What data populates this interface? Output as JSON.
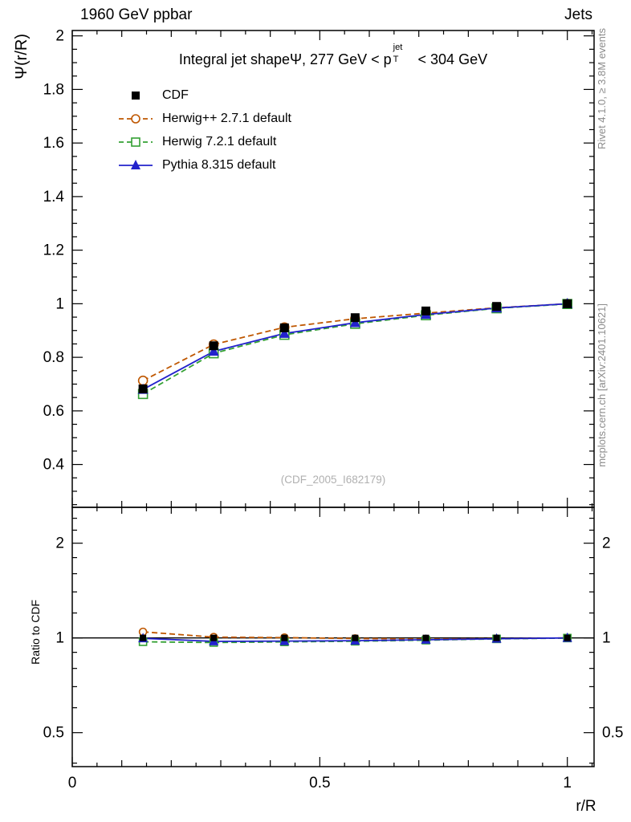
{
  "header": {
    "left": "1960 GeV ppbar",
    "right": "Jets"
  },
  "side_notes": {
    "top": "Rivet 4.1.0, ≥ 3.8M events",
    "bottom": "mcplots.cern.ch [arXiv:2401.10621]"
  },
  "watermark": "(CDF_2005_I682179)",
  "title": {
    "prefix": "Integral jet shape",
    "psi": "Ψ",
    "mid": ", 277 GeV < p",
    "sup": "jet",
    "sub": "T",
    "suffix": " < 304 GeV"
  },
  "axes": {
    "x_label": "r/R",
    "y_label_main": "Ψ(r/R)",
    "y_label_ratio": "Ratio to CDF"
  },
  "chart_data": {
    "type": "line",
    "title": "Integral jet shape Ψ, 277 GeV < p_T^jet < 304 GeV",
    "xlabel": "r/R",
    "ylabel": "Ψ(r/R)",
    "ratio_ylabel": "Ratio to CDF",
    "panels": [
      "main",
      "ratio"
    ],
    "xlim": [
      0,
      1.054
    ],
    "ylim_main": [
      0.24,
      2.02
    ],
    "ylim_ratio": [
      0.39,
      2.6
    ],
    "ratio_scale": "log",
    "x_major_ticks": [
      0,
      0.5,
      1
    ],
    "y_major_ticks_main": [
      0.4,
      0.6,
      0.8,
      1,
      1.2,
      1.4,
      1.6,
      1.8,
      2
    ],
    "y_major_ticks_ratio": [
      0.5,
      1,
      2
    ],
    "y_minor_ticks_ratio": [
      0.4,
      0.6,
      0.7,
      0.8,
      0.9,
      1.2,
      1.4,
      1.6,
      1.8,
      2.2,
      2.4
    ],
    "x": [
      0.1429,
      0.2857,
      0.4286,
      0.5714,
      0.7143,
      0.8571,
      1.0
    ],
    "series": [
      {
        "name": "CDF",
        "color": "#000000",
        "marker": "filled-square",
        "line": "none",
        "values": [
          0.682,
          0.843,
          0.91,
          0.948,
          0.973,
          0.99,
          1.0
        ]
      },
      {
        "name": "Herwig++ 2.7.1 default",
        "color": "#bf5700",
        "marker": "open-circle",
        "line": "dashed",
        "values": [
          0.713,
          0.848,
          0.912,
          0.944,
          0.965,
          0.985,
          1.0
        ]
      },
      {
        "name": "Herwig 7.2.1 default",
        "color": "#33a033",
        "marker": "open-square",
        "line": "dashed",
        "values": [
          0.663,
          0.815,
          0.884,
          0.925,
          0.957,
          0.983,
          0.999
        ]
      },
      {
        "name": "Pythia 8.315 default",
        "color": "#2222cc",
        "marker": "filled-triangle",
        "line": "solid",
        "values": [
          0.68,
          0.822,
          0.889,
          0.929,
          0.96,
          0.984,
          1.0
        ]
      }
    ],
    "ratio_reference": 1.0
  }
}
